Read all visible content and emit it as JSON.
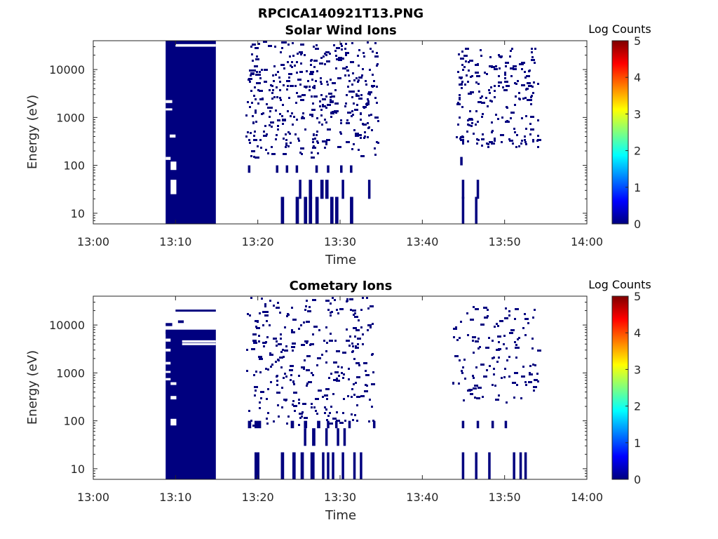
{
  "figure": {
    "title": "RPCICA140921T13.PNG",
    "colorbar_scale": [
      "#00007f",
      "#0000ff",
      "#007fff",
      "#00ffff",
      "#7fff7f",
      "#ffff00",
      "#ff7f00",
      "#ff0000",
      "#7f0000"
    ],
    "data_color": "#00007f"
  },
  "chart_data": [
    {
      "type": "heatmap",
      "title": "Solar Wind Ions",
      "xlabel": "Time",
      "ylabel": "Energy (eV)",
      "x_ticks": [
        "13:00",
        "13:10",
        "13:20",
        "13:30",
        "13:40",
        "13:50",
        "14:00"
      ],
      "xlim_minutes": [
        0,
        60
      ],
      "y_scale": "log",
      "y_ticks": [
        "10",
        "100",
        "1000",
        "10000"
      ],
      "ylim_eV": [
        6,
        40000
      ],
      "colorbar": {
        "label": "Log Counts",
        "range": [
          0,
          5
        ],
        "ticks": [
          "0",
          "1",
          "2",
          "3",
          "4",
          "5"
        ]
      },
      "grid": false,
      "blocks": [
        {
          "t": [
            8.8,
            14.9
          ],
          "e": [
            6,
            40000
          ],
          "level": 0
        }
      ],
      "gaps": [
        {
          "t": [
            10.0,
            14.9
          ],
          "e": [
            30000,
            34000
          ]
        },
        {
          "t": [
            8.8,
            9.6
          ],
          "e": [
            2000,
            2300
          ]
        },
        {
          "t": [
            8.8,
            9.6
          ],
          "e": [
            1400,
            1550
          ]
        },
        {
          "t": [
            9.3,
            10.0
          ],
          "e": [
            380,
            440
          ]
        },
        {
          "t": [
            8.8,
            9.4
          ],
          "e": [
            130,
            150
          ]
        },
        {
          "t": [
            9.4,
            10.1
          ],
          "e": [
            80,
            120
          ]
        },
        {
          "t": [
            9.4,
            10.1
          ],
          "e": [
            25,
            50
          ]
        }
      ],
      "scatter_windows": [
        {
          "t": [
            18.5,
            34.5
          ],
          "e": [
            150,
            40000
          ],
          "count": 420,
          "seed": 11
        },
        {
          "t": [
            44.0,
            54.0
          ],
          "e": [
            250,
            30000
          ],
          "count": 210,
          "seed": 23
        }
      ],
      "columns": [
        {
          "t": [
            22.8,
            23.2
          ],
          "e": [
            6,
            22
          ]
        },
        {
          "t": [
            24.6,
            25.0
          ],
          "e": [
            6,
            22
          ]
        },
        {
          "t": [
            25.6,
            26.0
          ],
          "e": [
            6,
            22
          ]
        },
        {
          "t": [
            26.2,
            26.6
          ],
          "e": [
            6,
            22
          ]
        },
        {
          "t": [
            27.0,
            27.4
          ],
          "e": [
            6,
            22
          ]
        },
        {
          "t": [
            28.8,
            29.2
          ],
          "e": [
            6,
            22
          ]
        },
        {
          "t": [
            29.4,
            29.8
          ],
          "e": [
            6,
            22
          ]
        },
        {
          "t": [
            31.2,
            31.6
          ],
          "e": [
            6,
            22
          ]
        },
        {
          "t": [
            25.0,
            25.3
          ],
          "e": [
            20,
            50
          ]
        },
        {
          "t": [
            26.2,
            26.6
          ],
          "e": [
            20,
            50
          ]
        },
        {
          "t": [
            27.6,
            28.0
          ],
          "e": [
            20,
            50
          ]
        },
        {
          "t": [
            28.2,
            28.6
          ],
          "e": [
            20,
            50
          ]
        },
        {
          "t": [
            30.2,
            30.5
          ],
          "e": [
            20,
            50
          ]
        },
        {
          "t": [
            33.4,
            33.7
          ],
          "e": [
            20,
            50
          ]
        },
        {
          "t": [
            18.8,
            19.1
          ],
          "e": [
            70,
            100
          ]
        },
        {
          "t": [
            22.2,
            22.5
          ],
          "e": [
            70,
            100
          ]
        },
        {
          "t": [
            23.4,
            23.7
          ],
          "e": [
            70,
            100
          ]
        },
        {
          "t": [
            24.6,
            24.9
          ],
          "e": [
            70,
            100
          ]
        },
        {
          "t": [
            27.0,
            27.3
          ],
          "e": [
            70,
            100
          ]
        },
        {
          "t": [
            28.4,
            28.7
          ],
          "e": [
            70,
            100
          ]
        },
        {
          "t": [
            30.0,
            30.3
          ],
          "e": [
            70,
            100
          ]
        },
        {
          "t": [
            31.2,
            31.5
          ],
          "e": [
            70,
            100
          ]
        },
        {
          "t": [
            44.8,
            45.1
          ],
          "e": [
            6,
            22
          ]
        },
        {
          "t": [
            46.4,
            46.7
          ],
          "e": [
            6,
            22
          ]
        },
        {
          "t": [
            44.8,
            45.1
          ],
          "e": [
            20,
            50
          ]
        },
        {
          "t": [
            46.6,
            46.9
          ],
          "e": [
            20,
            50
          ]
        },
        {
          "t": [
            44.6,
            44.9
          ],
          "e": [
            100,
            150
          ]
        }
      ]
    },
    {
      "type": "heatmap",
      "title": "Cometary Ions",
      "xlabel": "Time",
      "ylabel": "Energy (eV)",
      "x_ticks": [
        "13:00",
        "13:10",
        "13:20",
        "13:30",
        "13:40",
        "13:50",
        "14:00"
      ],
      "xlim_minutes": [
        0,
        60
      ],
      "y_scale": "log",
      "y_ticks": [
        "10",
        "100",
        "1000",
        "10000"
      ],
      "ylim_eV": [
        6,
        40000
      ],
      "colorbar": {
        "label": "Log Counts",
        "range": [
          0,
          5
        ],
        "ticks": [
          "0",
          "1",
          "2",
          "3",
          "4",
          "5"
        ]
      },
      "grid": false,
      "blocks": [
        {
          "t": [
            8.8,
            14.9
          ],
          "e": [
            6,
            8000
          ],
          "level": 0
        },
        {
          "t": [
            10.0,
            14.9
          ],
          "e": [
            19000,
            21000
          ],
          "level": 0
        },
        {
          "t": [
            8.8,
            9.6
          ],
          "e": [
            9500,
            11000
          ],
          "level": 0
        },
        {
          "t": [
            8.8,
            9.6
          ],
          "e": [
            6500,
            7500
          ],
          "level": 0
        },
        {
          "t": [
            10.3,
            11.0
          ],
          "e": [
            11000,
            12500
          ],
          "level": 0
        }
      ],
      "gaps": [
        {
          "t": [
            10.8,
            14.9
          ],
          "e": [
            4300,
            4800
          ]
        },
        {
          "t": [
            10.8,
            14.9
          ],
          "e": [
            3800,
            4200
          ]
        },
        {
          "t": [
            8.8,
            9.4
          ],
          "e": [
            4500,
            5200
          ]
        },
        {
          "t": [
            8.8,
            9.4
          ],
          "e": [
            2800,
            3200
          ]
        },
        {
          "t": [
            8.8,
            9.4
          ],
          "e": [
            1500,
            1700
          ]
        },
        {
          "t": [
            8.8,
            9.4
          ],
          "e": [
            1000,
            1100
          ]
        },
        {
          "t": [
            8.8,
            9.4
          ],
          "e": [
            700,
            780
          ]
        },
        {
          "t": [
            9.4,
            10.1
          ],
          "e": [
            560,
            640
          ]
        },
        {
          "t": [
            9.4,
            10.1
          ],
          "e": [
            280,
            330
          ]
        },
        {
          "t": [
            9.4,
            10.1
          ],
          "e": [
            80,
            110
          ]
        }
      ],
      "scatter_windows": [
        {
          "t": [
            18.5,
            34.0
          ],
          "e": [
            80,
            40000
          ],
          "count": 300,
          "seed": 37
        },
        {
          "t": [
            43.5,
            54.0
          ],
          "e": [
            250,
            25000
          ],
          "count": 130,
          "seed": 41
        }
      ],
      "columns": [
        {
          "t": [
            19.6,
            20.2
          ],
          "e": [
            6,
            22
          ]
        },
        {
          "t": [
            22.8,
            23.2
          ],
          "e": [
            6,
            22
          ]
        },
        {
          "t": [
            24.2,
            24.6
          ],
          "e": [
            6,
            22
          ]
        },
        {
          "t": [
            25.2,
            25.6
          ],
          "e": [
            6,
            22
          ]
        },
        {
          "t": [
            26.4,
            26.9
          ],
          "e": [
            6,
            22
          ],
          "level": 0.6
        },
        {
          "t": [
            27.8,
            28.1
          ],
          "e": [
            6,
            22
          ]
        },
        {
          "t": [
            28.4,
            28.7
          ],
          "e": [
            6,
            22
          ]
        },
        {
          "t": [
            29.0,
            29.3
          ],
          "e": [
            6,
            22
          ]
        },
        {
          "t": [
            30.2,
            30.5
          ],
          "e": [
            6,
            22
          ]
        },
        {
          "t": [
            31.6,
            31.9
          ],
          "e": [
            6,
            22
          ]
        },
        {
          "t": [
            32.4,
            32.7
          ],
          "e": [
            6,
            22
          ]
        },
        {
          "t": [
            44.8,
            45.1
          ],
          "e": [
            6,
            22
          ]
        },
        {
          "t": [
            46.4,
            46.7
          ],
          "e": [
            6,
            22
          ]
        },
        {
          "t": [
            48.0,
            48.3
          ],
          "e": [
            6,
            22
          ]
        },
        {
          "t": [
            51.0,
            51.3
          ],
          "e": [
            6,
            22
          ]
        },
        {
          "t": [
            51.8,
            52.1
          ],
          "e": [
            6,
            22
          ]
        },
        {
          "t": [
            52.4,
            52.7
          ],
          "e": [
            6,
            22
          ]
        },
        {
          "t": [
            18.8,
            19.2
          ],
          "e": [
            70,
            100
          ]
        },
        {
          "t": [
            19.6,
            20.4
          ],
          "e": [
            70,
            100
          ]
        },
        {
          "t": [
            24.0,
            24.4
          ],
          "e": [
            70,
            100
          ]
        },
        {
          "t": [
            25.6,
            26.0
          ],
          "e": [
            70,
            100
          ]
        },
        {
          "t": [
            27.2,
            27.6
          ],
          "e": [
            70,
            100
          ]
        },
        {
          "t": [
            28.4,
            28.7
          ],
          "e": [
            70,
            100
          ]
        },
        {
          "t": [
            29.4,
            29.7
          ],
          "e": [
            70,
            100
          ]
        },
        {
          "t": [
            31.0,
            31.3
          ],
          "e": [
            70,
            100
          ]
        },
        {
          "t": [
            34.0,
            34.3
          ],
          "e": [
            70,
            100
          ]
        },
        {
          "t": [
            44.8,
            45.1
          ],
          "e": [
            70,
            100
          ]
        },
        {
          "t": [
            46.6,
            46.9
          ],
          "e": [
            70,
            100
          ]
        },
        {
          "t": [
            48.4,
            48.7
          ],
          "e": [
            70,
            100
          ]
        },
        {
          "t": [
            50.0,
            50.3
          ],
          "e": [
            70,
            100
          ]
        },
        {
          "t": [
            25.6,
            25.9
          ],
          "e": [
            30,
            70
          ]
        },
        {
          "t": [
            26.6,
            27.0
          ],
          "e": [
            30,
            70
          ]
        },
        {
          "t": [
            28.2,
            28.5
          ],
          "e": [
            30,
            70
          ]
        },
        {
          "t": [
            29.6,
            29.9
          ],
          "e": [
            30,
            70
          ]
        },
        {
          "t": [
            30.4,
            30.7
          ],
          "e": [
            30,
            70
          ]
        }
      ]
    }
  ]
}
